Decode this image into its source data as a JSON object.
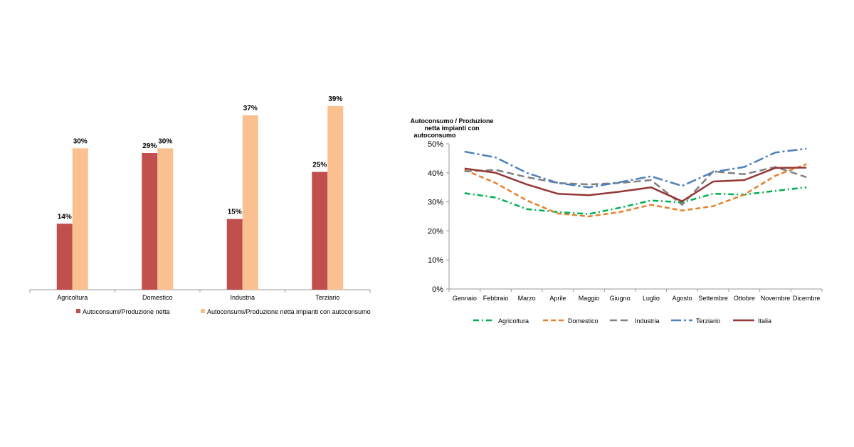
{
  "chart_data": [
    {
      "type": "bar",
      "categories": [
        "Agricoltura",
        "Domestico",
        "Industria",
        "Terziario"
      ],
      "series": [
        {
          "name": "Autoconsumi/Produzione netta",
          "values": [
            14,
            29,
            15,
            25
          ],
          "labels": [
            "14%",
            "29%",
            "15%",
            "25%"
          ],
          "color": "#c0504d"
        },
        {
          "name": "Autoconsumi/Produzione netta impianti con autoconsumo",
          "values": [
            30,
            30,
            37,
            39
          ],
          "labels": [
            "30%",
            "30%",
            "37%",
            "39%"
          ],
          "color": "#fac090"
        }
      ],
      "ylim": [
        0,
        45
      ],
      "legend_position": "bottom"
    },
    {
      "type": "line",
      "ylabel_lines": [
        "Autoconsumo / Produzione",
        "netta impianti con",
        "autoconsumo"
      ],
      "x": [
        "Gennaio",
        "Febbraio",
        "Marzo",
        "Aprile",
        "Maggio",
        "Giugno",
        "Luglio",
        "Agosto",
        "Settembre",
        "Ottobre",
        "Novembre",
        "Dicembre"
      ],
      "yticks": [
        "0%",
        "10%",
        "20%",
        "30%",
        "40%",
        "50%"
      ],
      "ylim": [
        0,
        50
      ],
      "series": [
        {
          "name": "Agricoltura",
          "values": [
            33,
            31.5,
            27.5,
            26.5,
            25.8,
            28,
            30.5,
            29.8,
            32.8,
            32.5,
            33.8,
            35
          ],
          "color": "#00b050",
          "dash": "8 4 2 4"
        },
        {
          "name": "Domestico",
          "values": [
            41,
            36.5,
            30.5,
            26,
            25,
            26.5,
            29,
            27,
            28.5,
            32.5,
            39,
            43
          ],
          "color": "#e5802b",
          "dash": "7 4"
        },
        {
          "name": "Industria",
          "values": [
            40.5,
            41,
            38.5,
            36.5,
            36,
            36.5,
            37.5,
            29,
            40.5,
            39.5,
            42,
            38.5
          ],
          "color": "#808080",
          "dash": "10 5"
        },
        {
          "name": "Terziario",
          "values": [
            47.3,
            45.3,
            40,
            36.5,
            35,
            36.8,
            38.8,
            35.5,
            40.3,
            42,
            47,
            48.3
          ],
          "color": "#4f81bd",
          "dash": "14 4 3 4"
        },
        {
          "name": "Italia",
          "values": [
            41.5,
            40,
            36,
            32.8,
            32.3,
            33.5,
            35,
            30.2,
            37,
            37.5,
            41.7,
            41.8
          ],
          "color": "#953735",
          "dash": ""
        }
      ],
      "grid": false,
      "legend_position": "bottom"
    }
  ]
}
